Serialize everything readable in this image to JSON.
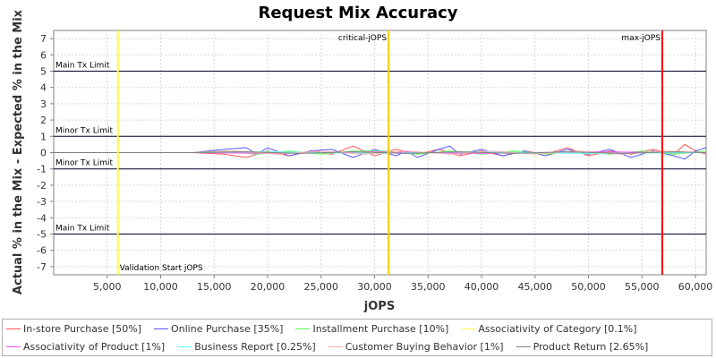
{
  "chart_data": {
    "type": "line",
    "title": "Request Mix Accuracy",
    "xlabel": "jOPS",
    "ylabel": "Actual % in the Mix - Expected % in the Mix",
    "xlim": [
      0,
      61000
    ],
    "ylim": [
      -7.5,
      7.5
    ],
    "x_ticks": [
      5000,
      10000,
      15000,
      20000,
      25000,
      30000,
      35000,
      40000,
      45000,
      50000,
      55000,
      60000
    ],
    "x_tick_labels": [
      "5,000",
      "10,000",
      "15,000",
      "20,000",
      "25,000",
      "30,000",
      "35,000",
      "40,000",
      "45,000",
      "50,000",
      "55,000",
      "60,000"
    ],
    "y_ticks": [
      7,
      6,
      5,
      4,
      3,
      2,
      1,
      0,
      -1,
      -2,
      -3,
      -4,
      -5,
      -6,
      -7
    ],
    "y_tick_labels": [
      "7",
      "6",
      "5",
      "4",
      "3",
      "2",
      "1",
      "0",
      "-1",
      "-2",
      "-3",
      "-4",
      "-5",
      "-6",
      "-7"
    ],
    "grid": true,
    "legend_position": "bottom",
    "limit_lines": [
      {
        "label": "Main Tx Limit",
        "y": 5
      },
      {
        "label": "Minor Tx Limit",
        "y": 1
      },
      {
        "label": "Minor Tx Limit",
        "y": -1
      },
      {
        "label": "Main Tx Limit",
        "y": -5
      }
    ],
    "markers": [
      {
        "label": "Validation Start jOPS",
        "x": 6000,
        "color": "#ffff33"
      },
      {
        "label": "critical-jOPS",
        "x": 31300,
        "color": "#ffcc00"
      },
      {
        "label": "max-jOPS",
        "x": 56900,
        "color": "#ff0000"
      }
    ],
    "series": [
      {
        "name": "In-store Purchase [50%]",
        "color": "#ff5555",
        "x": [
          0,
          13000,
          16000,
          18000,
          20000,
          22000,
          24000,
          26000,
          28000,
          30000,
          32000,
          34000,
          36000,
          38000,
          40000,
          42000,
          44000,
          46000,
          48000,
          50000,
          52000,
          54000,
          56000,
          58000,
          59000,
          60000,
          61000
        ],
        "y": [
          0,
          0,
          -0.1,
          -0.3,
          0.1,
          -0.2,
          0.1,
          -0.1,
          0.4,
          -0.2,
          0.2,
          -0.1,
          0.2,
          -0.2,
          0.1,
          -0.2,
          0.1,
          -0.1,
          0.3,
          -0.2,
          0.1,
          -0.1,
          0.2,
          -0.1,
          0.5,
          0.1,
          -0.1
        ]
      },
      {
        "name": "Online Purchase [35%]",
        "color": "#5555ff",
        "x": [
          0,
          13000,
          16000,
          18000,
          19000,
          20000,
          22000,
          24000,
          26000,
          28000,
          30000,
          32000,
          33000,
          34000,
          36000,
          37000,
          38000,
          40000,
          42000,
          44000,
          46000,
          48000,
          50000,
          52000,
          54000,
          56000,
          58000,
          59000,
          60000,
          61000
        ],
        "y": [
          0,
          0,
          0.2,
          0.3,
          -0.1,
          0.3,
          -0.2,
          0.1,
          0.2,
          -0.3,
          0.2,
          -0.2,
          0.1,
          -0.3,
          0.2,
          0.4,
          -0.1,
          0.2,
          -0.2,
          0.1,
          -0.2,
          0.2,
          -0.1,
          0.2,
          -0.3,
          0.1,
          -0.2,
          -0.4,
          0.1,
          0.3
        ]
      },
      {
        "name": "Installment Purchase [10%]",
        "color": "#55ff55",
        "x": [
          0,
          13000,
          16000,
          19000,
          22000,
          25000,
          28000,
          31000,
          34000,
          37000,
          40000,
          43000,
          46000,
          49000,
          52000,
          55000,
          58000,
          61000
        ],
        "y": [
          0,
          0,
          0.1,
          -0.1,
          0.1,
          -0.1,
          0.1,
          0.1,
          -0.1,
          0.1,
          -0.1,
          0.1,
          -0.1,
          0.1,
          -0.1,
          0.1,
          -0.1,
          0.1
        ]
      },
      {
        "name": "Associativity of Category [0.1%]",
        "color": "#ffff55",
        "x": [
          0,
          13000,
          20000,
          30000,
          40000,
          50000,
          61000
        ],
        "y": [
          0,
          0,
          0.05,
          -0.05,
          0.05,
          -0.05,
          0
        ]
      },
      {
        "name": "Associativity of Product [1%]",
        "color": "#ff55ff",
        "x": [
          0,
          13000,
          20000,
          30000,
          40000,
          50000,
          61000
        ],
        "y": [
          0,
          0,
          -0.05,
          0.05,
          -0.05,
          0.05,
          0
        ]
      },
      {
        "name": "Business Report [0.25%]",
        "color": "#55ffff",
        "x": [
          0,
          13000,
          20000,
          30000,
          40000,
          50000,
          61000
        ],
        "y": [
          0,
          0,
          0.05,
          -0.05,
          0.05,
          -0.05,
          0
        ]
      },
      {
        "name": "Customer Buying Behavior [1%]",
        "color": "#ffafaf",
        "x": [
          0,
          13000,
          17000,
          21000,
          25000,
          29000,
          33000,
          37000,
          41000,
          45000,
          49000,
          53000,
          57000,
          61000
        ],
        "y": [
          0,
          0,
          0.1,
          -0.1,
          0.1,
          -0.1,
          0.1,
          -0.1,
          0.1,
          -0.1,
          0.1,
          -0.1,
          0.1,
          0
        ]
      },
      {
        "name": "Product Return [2.65%]",
        "color": "#808080",
        "x": [
          0,
          13000,
          18000,
          23000,
          28000,
          33000,
          38000,
          43000,
          48000,
          53000,
          58000,
          61000
        ],
        "y": [
          0,
          0,
          0.05,
          -0.05,
          0.05,
          -0.05,
          0.05,
          -0.05,
          0.05,
          -0.05,
          0.05,
          0
        ]
      }
    ]
  }
}
